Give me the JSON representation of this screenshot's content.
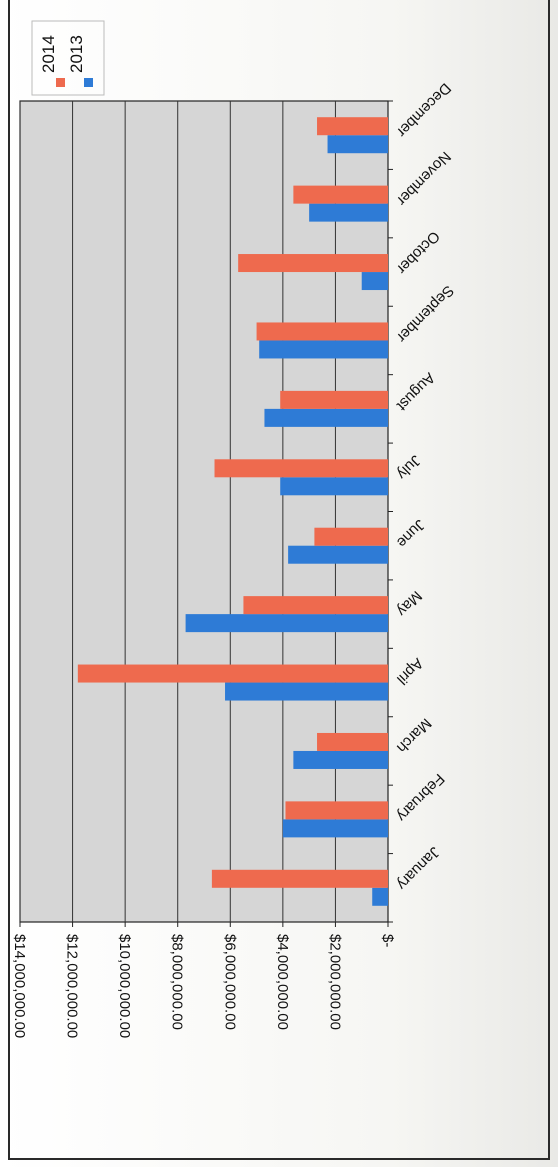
{
  "chart_data": {
    "type": "bar",
    "orientation": "horizontal-bars, image rotated 180 degrees",
    "categories": [
      "January",
      "February",
      "March",
      "April",
      "May",
      "June",
      "July",
      "August",
      "September",
      "October",
      "November",
      "December"
    ],
    "series": [
      {
        "name": "2013",
        "color": "#2e7bd6",
        "values": [
          600000,
          4000000,
          3600000,
          6200000,
          7700000,
          3800000,
          4100000,
          4700000,
          4900000,
          1000000,
          3000000,
          2300000
        ]
      },
      {
        "name": "2014",
        "color": "#ee6a4e",
        "values": [
          6700000,
          3900000,
          2700000,
          11800000,
          5500000,
          2800000,
          6600000,
          4100000,
          5000000,
          5700000,
          3600000,
          2700000
        ]
      }
    ],
    "x_axis": {
      "min": 0,
      "max": 14000000,
      "ticks": [
        {
          "value": 0,
          "label": "$-"
        },
        {
          "value": 2000000,
          "label": "$2,000,000.00"
        },
        {
          "value": 4000000,
          "label": "$4,000,000.00"
        },
        {
          "value": 6000000,
          "label": "$6,000,000.00"
        },
        {
          "value": 8000000,
          "label": "$8,000,000.00"
        },
        {
          "value": 10000000,
          "label": "$10,000,000.00"
        },
        {
          "value": 12000000,
          "label": "$12,000,000.00"
        },
        {
          "value": 14000000,
          "label": "$14,000,000.00"
        }
      ]
    },
    "grid": true,
    "legend_position": "top",
    "plot_background": "#d6d6d6"
  }
}
